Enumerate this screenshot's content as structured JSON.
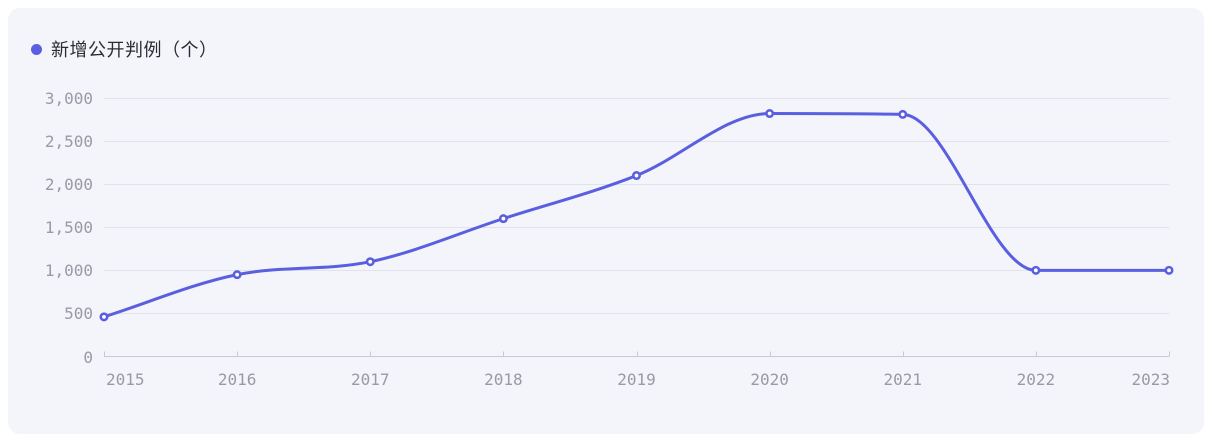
{
  "legend": {
    "items": [
      {
        "label": "新增公开判例（个）",
        "color": "#5a5fe0"
      }
    ]
  },
  "chart_data": {
    "type": "line",
    "title": "",
    "xlabel": "",
    "ylabel": "",
    "categories": [
      "2015",
      "2016",
      "2017",
      "2018",
      "2019",
      "2020",
      "2021",
      "2022",
      "2023"
    ],
    "series": [
      {
        "name": "新增公开判例（个）",
        "values": [
          460,
          950,
          1100,
          1600,
          2100,
          2820,
          2810,
          1000,
          1000
        ]
      }
    ],
    "ylim": [
      0,
      3000
    ],
    "y_ticks": [
      0,
      500,
      1000,
      1500,
      2000,
      2500,
      3000
    ],
    "grid": "horizontal-only",
    "legend_position": "top-left",
    "smooth": true,
    "marker": "hollow-circle"
  },
  "colors": {
    "accent": "#5a5fe0",
    "card_background": "#f4f4fb",
    "page_background": "#ffffff",
    "gridline": "#e2e2ea",
    "axis_line": "#c9c9d4",
    "tick_label": "#9a9aa6",
    "legend_text": "#2b2b31",
    "marker_fill": "#ffffff"
  }
}
